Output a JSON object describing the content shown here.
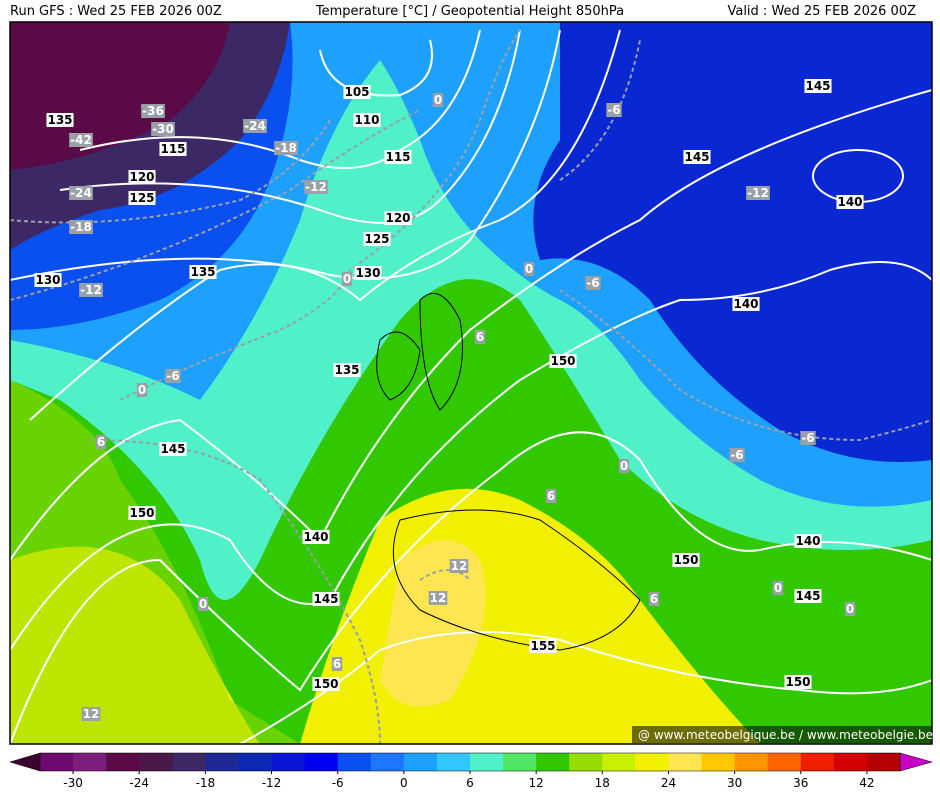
{
  "header": {
    "run": "Run GFS : Wed 25 FEB 2026 00Z",
    "title": "Temperature [°C] / Geopotential Height 850hPa",
    "valid": "Valid : Wed 25 FEB 2026 00Z"
  },
  "height_labels": [
    135,
    105,
    110,
    115,
    115,
    120,
    125,
    120,
    125,
    130,
    135,
    130,
    135,
    145,
    150,
    140,
    145,
    150,
    155,
    150,
    145,
    145,
    140,
    140,
    140,
    150,
    145,
    150
  ],
  "temperature_labels": [
    -36,
    -30,
    -42,
    -24,
    -18,
    -12,
    -24,
    -18,
    -12,
    0,
    -6,
    -12,
    -6,
    0,
    0,
    6,
    -6,
    0,
    6,
    -6,
    -6,
    0,
    6,
    12,
    12,
    0,
    6,
    0,
    0,
    6,
    12
  ],
  "watermark": "@ www.meteobelgique.be / www.meteobelgie.be",
  "colorbar": {
    "range": [
      -33,
      45
    ],
    "ticks": [
      -30,
      -24,
      -18,
      -12,
      -6,
      0,
      6,
      12,
      18,
      24,
      30,
      36,
      42
    ],
    "colors": [
      "#6e0a6e",
      "#7d1e7d",
      "#5a0a46",
      "#4a1846",
      "#3c2864",
      "#1e2896",
      "#0a28b4",
      "#0a14d2",
      "#0000f0",
      "#0a50f0",
      "#1e78ff",
      "#1ea0ff",
      "#32c8ff",
      "#50f0c8",
      "#50e664",
      "#32c800",
      "#96dc00",
      "#c8f000",
      "#f0f000",
      "#ffe650",
      "#ffc800",
      "#ff9600",
      "#ff6400",
      "#f01e00",
      "#d20000",
      "#b40000"
    ],
    "under_color": "#3c0030",
    "over_color": "#c800c8"
  }
}
